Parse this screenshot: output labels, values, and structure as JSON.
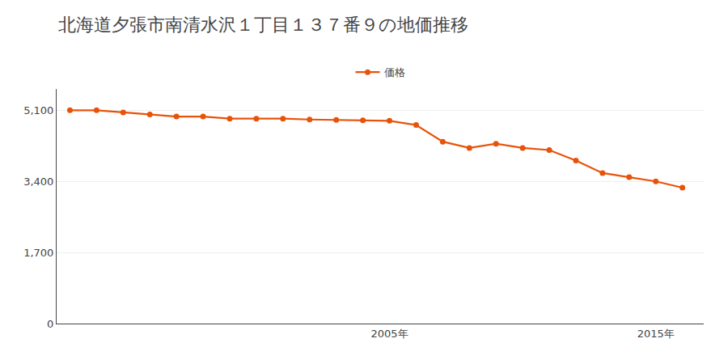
{
  "chart_data": {
    "type": "line",
    "title": "北海道夕張市南清水沢１丁目１３７番９の地価推移",
    "x": [
      1993,
      1994,
      1995,
      1996,
      1997,
      1998,
      1999,
      2000,
      2001,
      2002,
      2003,
      2004,
      2005,
      2006,
      2007,
      2008,
      2009,
      2010,
      2011,
      2012,
      2013,
      2014,
      2015,
      2016
    ],
    "series": [
      {
        "name": "価格",
        "color": "#e8530a",
        "marker": "circle",
        "line_style": "solid",
        "values": [
          5100,
          5100,
          5050,
          5000,
          4950,
          4950,
          4900,
          4900,
          4900,
          4880,
          4870,
          4860,
          4850,
          4750,
          4350,
          4200,
          4300,
          4200,
          4150,
          3900,
          3600,
          3500,
          3400,
          3250
        ]
      }
    ],
    "xlim": [
      1992.5,
      2016.8
    ],
    "xticks": [
      {
        "value": 2005,
        "label": "2005年"
      },
      {
        "value": 2015,
        "label": "2015年"
      }
    ],
    "ylim": [
      0,
      5610
    ],
    "yticks": [
      0,
      {
        "value": 1700,
        "label": "1,700"
      },
      {
        "value": 3400,
        "label": "3,400"
      },
      {
        "value": 5100,
        "label": "5,100"
      }
    ],
    "grid": true,
    "legend": "top"
  }
}
